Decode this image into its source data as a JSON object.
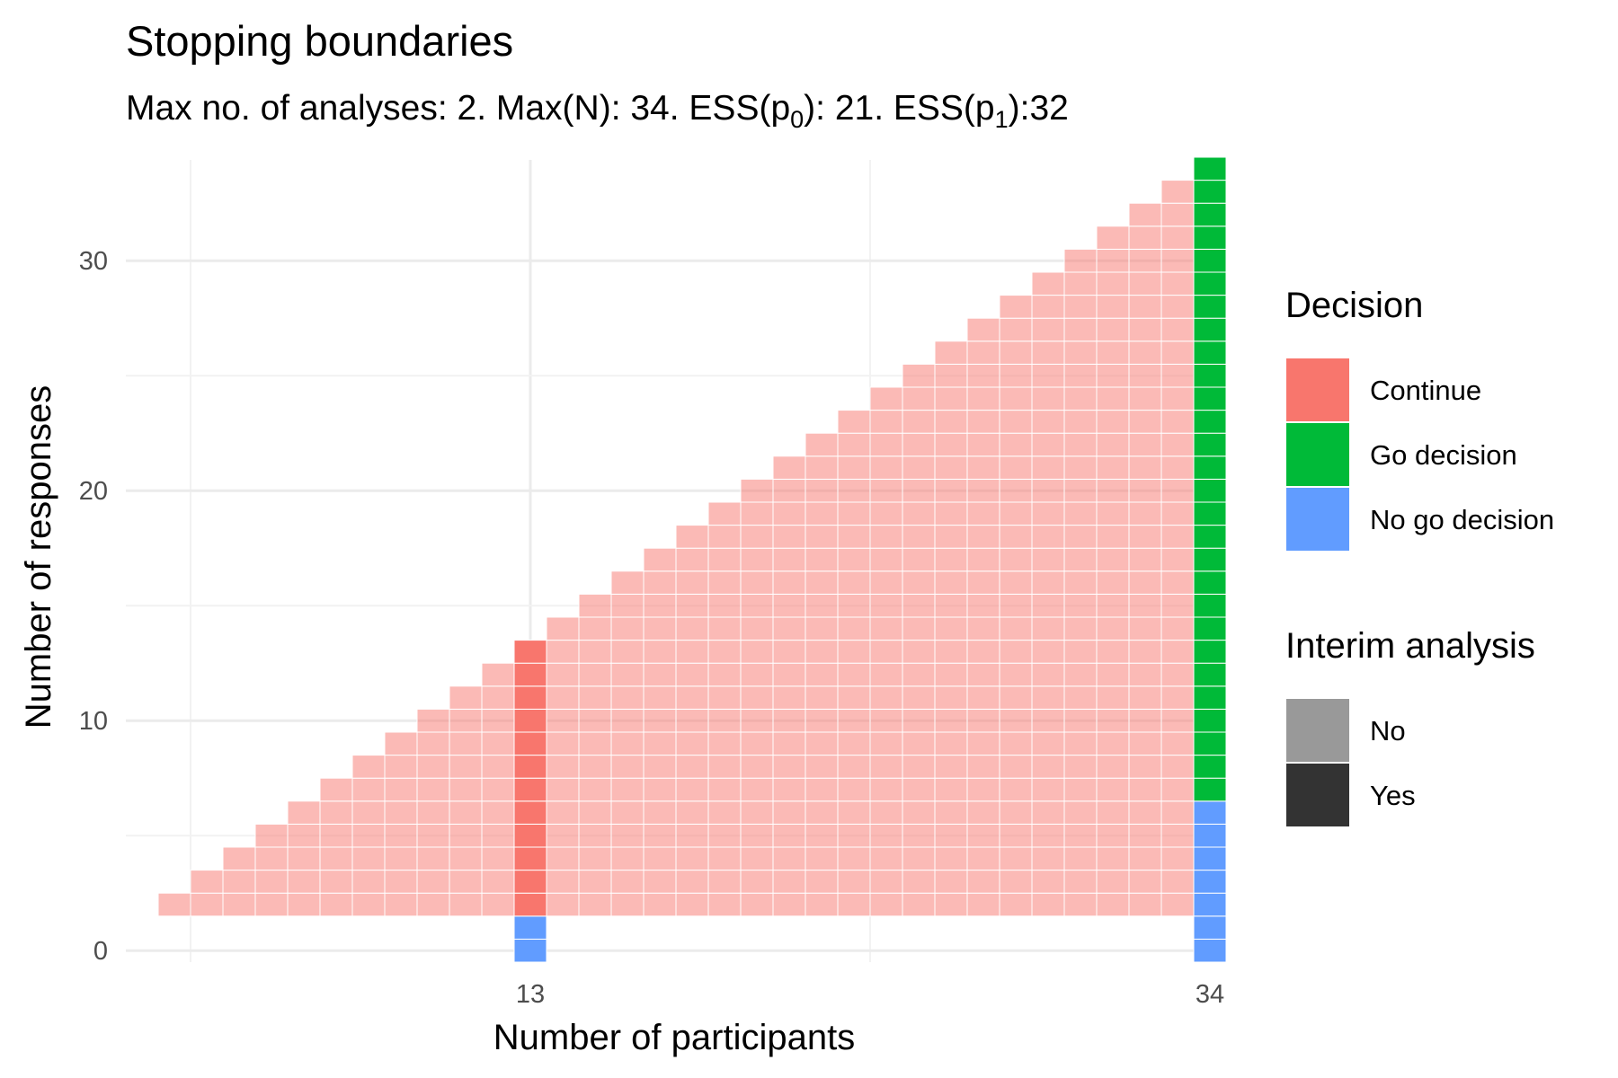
{
  "chart_data": {
    "type": "heatmap",
    "title": "Stopping boundaries",
    "subtitle": {
      "prefix": "Max no. of analyses: 2. Max(N): 34. ESS(p",
      "sub0": "0",
      "mid": "): 21. ESS(p",
      "sub1": "1",
      "suffix": "):32"
    },
    "xlabel": "Number of participants",
    "ylabel": "Number of responses",
    "xlim": [
      1,
      34
    ],
    "ylim": [
      0,
      34
    ],
    "x_ticks": [
      13,
      34
    ],
    "y_ticks": [
      0,
      10,
      20,
      30
    ],
    "grid": true,
    "legend_position": "right",
    "interim_analyses": [
      13,
      34
    ],
    "go_threshold": 7,
    "no_go_threshold": {
      "13": 1,
      "34": 6
    },
    "legends": [
      {
        "title": "Decision",
        "entries": [
          {
            "label": "Continue",
            "color": "#F8766D"
          },
          {
            "label": "Go decision",
            "color": "#00BA38"
          },
          {
            "label": "No go decision",
            "color": "#619CFF"
          }
        ]
      },
      {
        "title": "Interim analysis",
        "entries": [
          {
            "label": "No",
            "color": "#999999"
          },
          {
            "label": "Yes",
            "color": "#333333"
          }
        ]
      }
    ],
    "colors": {
      "continue": "#F8766D",
      "go": "#00BA38",
      "no_go": "#619CFF",
      "non_interim_alpha": 0.5
    }
  }
}
